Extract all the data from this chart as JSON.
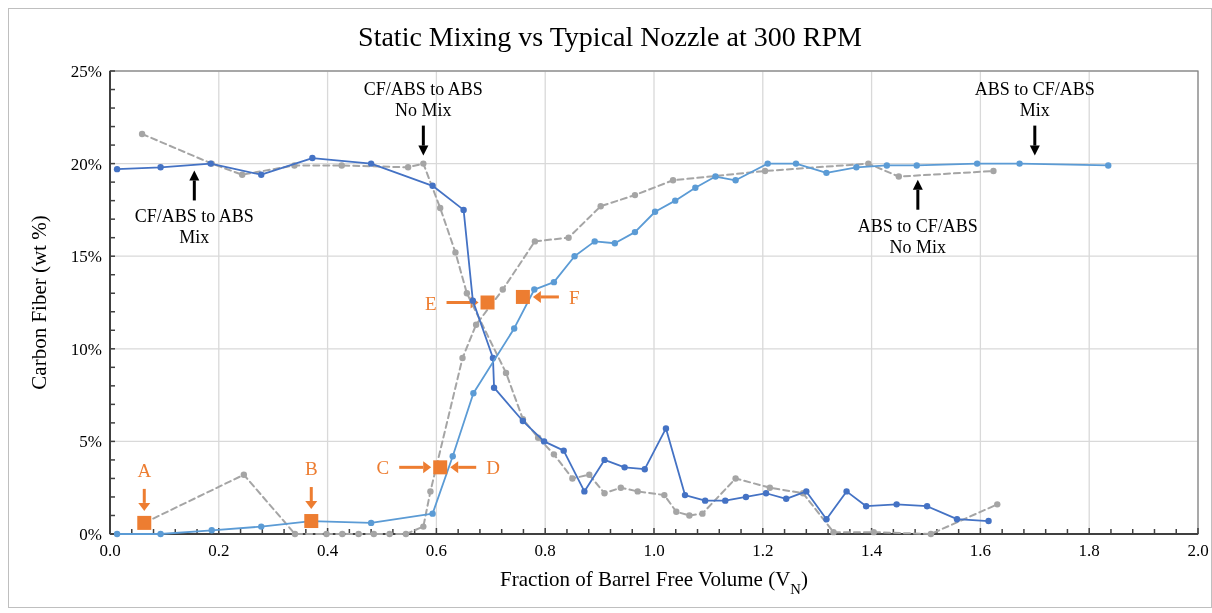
{
  "chart_data": {
    "type": "line",
    "title": "Static Mixing vs Typical Nozzle at 300 RPM",
    "xlabel": "Fraction of Barrel Free Volume (V$_{N}$)",
    "ylabel": "Carbon Fiber (wt %)",
    "xlim": [
      0,
      2
    ],
    "ylim": [
      0,
      25
    ],
    "xticks": [
      {
        "value": 0,
        "label": "0.0"
      },
      {
        "value": 0.04,
        "label": null
      },
      {
        "value": 0.08,
        "label": null
      },
      {
        "value": 0.12,
        "label": null
      },
      {
        "value": 0.16,
        "label": null
      },
      {
        "value": 0.2,
        "label": "0.2"
      },
      {
        "value": 0.24,
        "label": null
      },
      {
        "value": 0.28,
        "label": null
      },
      {
        "value": 0.32,
        "label": null
      },
      {
        "value": 0.36,
        "label": null
      },
      {
        "value": 0.4,
        "label": "0.4"
      },
      {
        "value": 0.44,
        "label": null
      },
      {
        "value": 0.48,
        "label": null
      },
      {
        "value": 0.52,
        "label": null
      },
      {
        "value": 0.56,
        "label": null
      },
      {
        "value": 0.6,
        "label": "0.6"
      },
      {
        "value": 0.64,
        "label": null
      },
      {
        "value": 0.68,
        "label": null
      },
      {
        "value": 0.72,
        "label": null
      },
      {
        "value": 0.76,
        "label": null
      },
      {
        "value": 0.8,
        "label": "0.8"
      },
      {
        "value": 0.84,
        "label": null
      },
      {
        "value": 0.88,
        "label": null
      },
      {
        "value": 0.92,
        "label": null
      },
      {
        "value": 0.96,
        "label": null
      },
      {
        "value": 1,
        "label": "1.0"
      },
      {
        "value": 1.04,
        "label": null
      },
      {
        "value": 1.08,
        "label": null
      },
      {
        "value": 1.12,
        "label": null
      },
      {
        "value": 1.16,
        "label": null
      },
      {
        "value": 1.2,
        "label": "1.2"
      },
      {
        "value": 1.24,
        "label": null
      },
      {
        "value": 1.28,
        "label": null
      },
      {
        "value": 1.32,
        "label": null
      },
      {
        "value": 1.36,
        "label": null
      },
      {
        "value": 1.4,
        "label": "1.4"
      },
      {
        "value": 1.44,
        "label": null
      },
      {
        "value": 1.48,
        "label": null
      },
      {
        "value": 1.52,
        "label": null
      },
      {
        "value": 1.56,
        "label": null
      },
      {
        "value": 1.6,
        "label": "1.6"
      },
      {
        "value": 1.64,
        "label": null
      },
      {
        "value": 1.68,
        "label": null
      },
      {
        "value": 1.72,
        "label": null
      },
      {
        "value": 1.76,
        "label": null
      },
      {
        "value": 1.8,
        "label": "1.8"
      },
      {
        "value": 1.84,
        "label": null
      },
      {
        "value": 1.88,
        "label": null
      },
      {
        "value": 1.92,
        "label": null
      },
      {
        "value": 1.96,
        "label": null
      },
      {
        "value": 2,
        "label": "2.0"
      }
    ],
    "yticks": [
      {
        "value": 0,
        "label": "0%"
      },
      {
        "value": 1,
        "label": null
      },
      {
        "value": 2,
        "label": null
      },
      {
        "value": 3,
        "label": null
      },
      {
        "value": 4,
        "label": null
      },
      {
        "value": 5,
        "label": "5%"
      },
      {
        "value": 6,
        "label": null
      },
      {
        "value": 7,
        "label": null
      },
      {
        "value": 8,
        "label": null
      },
      {
        "value": 9,
        "label": null
      },
      {
        "value": 10,
        "label": "10%"
      },
      {
        "value": 11,
        "label": null
      },
      {
        "value": 12,
        "label": null
      },
      {
        "value": 13,
        "label": null
      },
      {
        "value": 14,
        "label": null
      },
      {
        "value": 15,
        "label": "15%"
      },
      {
        "value": 16,
        "label": null
      },
      {
        "value": 17,
        "label": null
      },
      {
        "value": 18,
        "label": null
      },
      {
        "value": 19,
        "label": null
      },
      {
        "value": 20,
        "label": "20%"
      },
      {
        "value": 21,
        "label": null
      },
      {
        "value": 22,
        "label": null
      },
      {
        "value": 23,
        "label": null
      },
      {
        "value": 24,
        "label": null
      },
      {
        "value": 25,
        "label": "25%"
      }
    ],
    "grid": true,
    "series": [
      {
        "color": "#a5a5a5",
        "line_style": "dashed",
        "marker": "circle",
        "x": [
          0.059,
          0.187,
          0.243,
          0.339,
          0.426,
          0.548,
          0.576,
          0.607,
          0.635,
          0.656,
          0.728,
          0.759,
          0.787,
          0.816,
          0.85,
          0.881,
          0.909,
          0.939,
          0.97,
          1.019,
          1.041,
          1.065,
          1.089,
          1.15,
          1.213,
          1.274,
          1.33,
          1.404,
          1.509,
          1.631
        ],
        "values": [
          21.6,
          20.0,
          19.4,
          19.9,
          19.9,
          19.8,
          20.0,
          17.6,
          15.2,
          13.0,
          8.7,
          6.2,
          5.2,
          4.3,
          3.0,
          3.2,
          2.2,
          2.5,
          2.3,
          2.1,
          1.2,
          1.0,
          1.1,
          3.0,
          2.5,
          2.2,
          0.1,
          0.1,
          0,
          1.6
        ]
      },
      {
        "color": "#a5a5a5",
        "line_style": "dashed",
        "marker": "circle",
        "x": [
          0.063,
          0.246,
          0.34,
          0.398,
          0.427,
          0.457,
          0.485,
          0.514,
          0.544,
          0.576,
          0.589,
          0.648,
          0.673,
          0.722,
          0.781,
          0.843,
          0.902,
          0.965,
          1.035,
          1.204,
          1.394,
          1.45,
          1.624
        ],
        "values": [
          0.6,
          3.2,
          0,
          0,
          0,
          0,
          0,
          0,
          0,
          0.4,
          2.3,
          9.5,
          11.3,
          13.2,
          15.8,
          16.0,
          17.7,
          18.3,
          19.1,
          19.6,
          20.0,
          19.3,
          19.6
        ]
      },
      {
        "color": "#4472c4",
        "line_style": "solid",
        "marker": "circle",
        "x": [
          0.013,
          0.093,
          0.185,
          0.278,
          0.372,
          0.48,
          0.593,
          0.65,
          0.667,
          0.704,
          0.706,
          0.759,
          0.798,
          0.834,
          0.872,
          0.909,
          0.946,
          0.983,
          1.022,
          1.057,
          1.094,
          1.131,
          1.169,
          1.206,
          1.243,
          1.28,
          1.317,
          1.354,
          1.39,
          1.446,
          1.502,
          1.557,
          1.615
        ],
        "values": [
          19.7,
          19.8,
          20.0,
          19.4,
          20.3,
          20.0,
          18.8,
          17.5,
          12.6,
          9.5,
          7.9,
          6.1,
          5.0,
          4.5,
          2.3,
          4.0,
          3.6,
          3.5,
          5.7,
          2.1,
          1.8,
          1.8,
          2.0,
          2.2,
          1.9,
          2.3,
          0.8,
          2.3,
          1.5,
          1.6,
          1.5,
          0.8,
          0.7
        ]
      },
      {
        "color": "#5b9bd5",
        "line_style": "solid",
        "marker": "circle",
        "x": [
          0.013,
          0.093,
          0.187,
          0.278,
          0.37,
          0.48,
          0.593,
          0.63,
          0.668,
          0.743,
          0.78,
          0.816,
          0.854,
          0.891,
          0.928,
          0.965,
          1.002,
          1.039,
          1.076,
          1.113,
          1.15,
          1.209,
          1.261,
          1.317,
          1.372,
          1.428,
          1.483,
          1.594,
          1.672,
          1.835
        ],
        "values": [
          0,
          0,
          0.2,
          0.4,
          0.7,
          0.6,
          1.1,
          4.2,
          7.6,
          11.1,
          13.2,
          13.6,
          15.0,
          15.8,
          15.7,
          16.3,
          17.4,
          18.0,
          18.7,
          19.3,
          19.1,
          20.0,
          20.0,
          19.5,
          19.8,
          19.9,
          19.9,
          20.0,
          20.0,
          19.9
        ]
      },
      {
        "type": "scatter",
        "color": "#ed7d31",
        "marker": "square",
        "x": [
          0.063,
          0.37,
          0.607,
          0.694,
          0.759
        ],
        "values": [
          0.6,
          0.7,
          3.6,
          12.5,
          12.8
        ]
      }
    ],
    "annotations": [
      {
        "text": "CF/ABS to ABS\nMix",
        "x": 0.155,
        "y": 19.9
      },
      {
        "text": "CF/ABS to ABS\nNo Mix",
        "x": 0.576,
        "y": 20.0
      },
      {
        "text": "ABS to CF/ABS\nMix",
        "x": 1.7,
        "y": 20.0
      },
      {
        "text": "ABS to CF/ABS\nNo Mix",
        "x": 1.485,
        "y": 19.4
      },
      {
        "text": "A",
        "x": 0.063,
        "y": 0.6
      },
      {
        "text": "B",
        "x": 0.37,
        "y": 0.7
      },
      {
        "text": "C",
        "x": 0.607,
        "y": 3.6
      },
      {
        "text": "D",
        "x": 0.607,
        "y": 3.6
      },
      {
        "text": "E",
        "x": 0.694,
        "y": 12.5
      },
      {
        "text": "F",
        "x": 0.759,
        "y": 12.8
      }
    ]
  }
}
